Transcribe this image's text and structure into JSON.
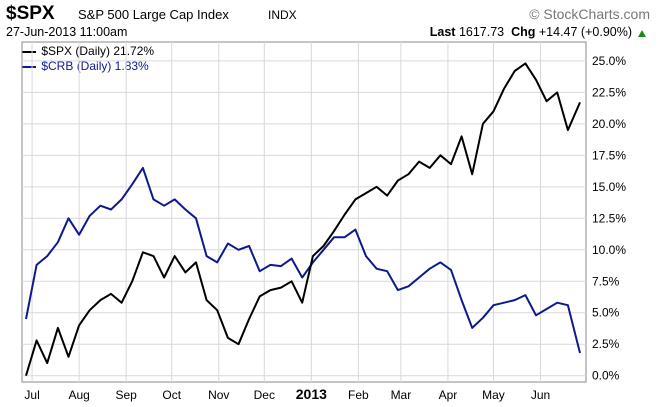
{
  "header": {
    "ticker": "$SPX",
    "index_name": "S&P 500 Large Cap Index",
    "exchange": "INDX",
    "datetime": "27-Jun-2013 11:00am",
    "brand": "© StockCharts.com",
    "last_label": "Last",
    "last_value": "1617.73",
    "chg_label": "Chg",
    "chg_value": "+14.47 (+0.90%)",
    "chg_direction": "up"
  },
  "chart_data": {
    "type": "line",
    "xlabel": "",
    "ylabel": "",
    "ylim": [
      -0.5,
      26.5
    ],
    "y_ticks": [
      "0.0%",
      "2.5%",
      "5.0%",
      "7.5%",
      "10.0%",
      "12.5%",
      "15.0%",
      "17.5%",
      "20.0%",
      "22.5%",
      "25.0%"
    ],
    "y_tick_values": [
      0,
      2.5,
      5,
      7.5,
      10,
      12.5,
      15,
      17.5,
      20,
      22.5,
      25
    ],
    "y_axis_side": "right",
    "grid": true,
    "legend_position": "top-left",
    "x_ticks": [
      "Jul",
      "Aug",
      "Sep",
      "Oct",
      "Nov",
      "Dec",
      "2013",
      "Feb",
      "Mar",
      "Apr",
      "May",
      "Jun"
    ],
    "x_tick_bold": [
      "2013"
    ],
    "x": [
      "2012-06-27",
      "2012-07-04",
      "2012-07-11",
      "2012-07-18",
      "2012-07-25",
      "2012-08-01",
      "2012-08-08",
      "2012-08-15",
      "2012-08-22",
      "2012-08-29",
      "2012-09-05",
      "2012-09-12",
      "2012-09-19",
      "2012-09-26",
      "2012-10-03",
      "2012-10-10",
      "2012-10-17",
      "2012-10-24",
      "2012-10-31",
      "2012-11-07",
      "2012-11-14",
      "2012-11-21",
      "2012-11-28",
      "2012-12-05",
      "2012-12-12",
      "2012-12-19",
      "2012-12-26",
      "2013-01-02",
      "2013-01-09",
      "2013-01-16",
      "2013-01-23",
      "2013-01-30",
      "2013-02-06",
      "2013-02-13",
      "2013-02-20",
      "2013-02-27",
      "2013-03-06",
      "2013-03-13",
      "2013-03-20",
      "2013-03-27",
      "2013-04-03",
      "2013-04-10",
      "2013-04-17",
      "2013-04-24",
      "2013-05-01",
      "2013-05-08",
      "2013-05-15",
      "2013-05-22",
      "2013-05-29",
      "2013-06-05",
      "2013-06-12",
      "2013-06-19",
      "2013-06-27"
    ],
    "series": [
      {
        "name": "$SPX (Daily) 21.72%",
        "color": "#000000",
        "values": [
          0.0,
          2.8,
          1.0,
          3.8,
          1.5,
          4.0,
          5.2,
          6.0,
          6.5,
          5.8,
          7.5,
          9.8,
          9.5,
          7.8,
          9.5,
          8.2,
          9.0,
          6.0,
          5.2,
          3.0,
          2.5,
          4.5,
          6.3,
          6.8,
          7.0,
          7.5,
          5.8,
          9.5,
          10.3,
          11.5,
          12.8,
          14.0,
          14.5,
          15.0,
          14.3,
          15.5,
          16.0,
          17.0,
          16.5,
          17.5,
          16.8,
          19.0,
          16.0,
          20.0,
          21.0,
          22.8,
          24.2,
          24.8,
          23.5,
          21.8,
          22.5,
          19.5,
          21.7
        ]
      },
      {
        "name": "$CRB (Daily) 1.83%",
        "color": "#0d1a8c",
        "values": [
          4.5,
          8.8,
          9.5,
          10.6,
          12.5,
          11.2,
          12.7,
          13.5,
          13.2,
          14.0,
          15.2,
          16.5,
          14.0,
          13.5,
          14.0,
          13.2,
          12.5,
          9.5,
          9.0,
          10.5,
          10.0,
          10.3,
          8.3,
          8.8,
          8.7,
          9.3,
          7.8,
          9.0,
          10.0,
          11.0,
          11.0,
          11.6,
          9.5,
          8.5,
          8.3,
          6.8,
          7.1,
          7.8,
          8.5,
          9.0,
          8.4,
          6.0,
          3.8,
          4.6,
          5.6,
          5.8,
          6.0,
          6.4,
          4.8,
          5.3,
          5.8,
          5.6,
          1.8
        ]
      }
    ]
  }
}
